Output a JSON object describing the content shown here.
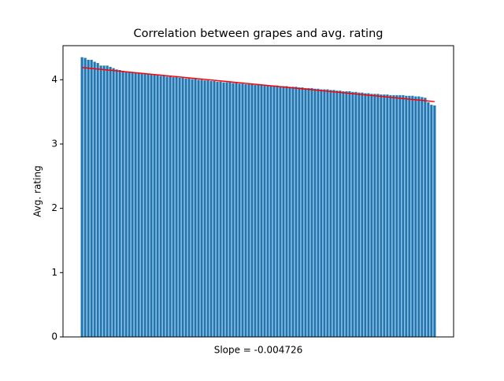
{
  "chart_data": {
    "type": "bar",
    "title": "Correlation between grapes and avg. rating",
    "xlabel": "Slope = -0.004726",
    "ylabel": "Avg. rating",
    "categories": [
      null,
      null,
      null,
      null,
      null,
      null,
      null,
      null,
      null,
      null,
      null,
      null,
      null,
      null,
      null,
      null,
      null,
      null,
      null,
      null,
      null,
      null,
      null,
      null,
      null,
      null,
      null,
      null,
      null,
      null,
      null,
      null,
      null,
      null,
      null,
      null,
      null,
      null,
      null,
      null,
      null,
      null,
      null,
      null,
      null,
      null,
      null,
      null,
      null,
      null,
      null,
      null,
      null,
      null,
      null,
      null,
      null,
      null,
      null,
      null,
      null,
      null,
      null,
      null,
      null,
      null,
      null,
      null,
      null,
      null,
      null,
      null,
      null,
      null,
      null,
      null,
      null,
      null,
      null,
      null,
      null,
      null,
      null,
      null,
      null,
      null,
      null,
      null,
      null,
      null,
      null,
      null,
      null,
      null,
      null,
      null,
      null,
      null,
      null,
      null,
      null,
      null,
      null,
      null,
      null,
      null,
      null,
      null,
      null,
      null,
      null,
      null,
      null
    ],
    "values": [
      4.35,
      4.34,
      4.31,
      4.31,
      4.28,
      4.26,
      4.22,
      4.22,
      4.22,
      4.2,
      4.18,
      4.16,
      4.15,
      4.14,
      4.13,
      4.12,
      4.11,
      4.11,
      4.1,
      4.1,
      4.09,
      4.09,
      4.08,
      4.08,
      4.07,
      4.06,
      4.06,
      4.05,
      4.05,
      4.04,
      4.04,
      4.03,
      4.03,
      4.02,
      4.02,
      4.01,
      4.01,
      4.0,
      4.0,
      3.99,
      3.99,
      3.98,
      3.98,
      3.97,
      3.97,
      3.96,
      3.96,
      3.96,
      3.95,
      3.95,
      3.94,
      3.94,
      3.93,
      3.93,
      3.93,
      3.92,
      3.92,
      3.92,
      3.92,
      3.91,
      3.91,
      3.91,
      3.91,
      3.9,
      3.9,
      3.9,
      3.89,
      3.89,
      3.89,
      3.88,
      3.88,
      3.87,
      3.87,
      3.87,
      3.86,
      3.86,
      3.85,
      3.85,
      3.85,
      3.84,
      3.84,
      3.83,
      3.83,
      3.82,
      3.82,
      3.82,
      3.81,
      3.81,
      3.8,
      3.8,
      3.79,
      3.79,
      3.78,
      3.78,
      3.78,
      3.77,
      3.77,
      3.77,
      3.76,
      3.76,
      3.76,
      3.76,
      3.76,
      3.75,
      3.75,
      3.75,
      3.74,
      3.74,
      3.73,
      3.72,
      3.65,
      3.61,
      3.6
    ],
    "color": "#1f77b4",
    "trend_line": {
      "values": [
        4.19,
        3.66
      ],
      "color": "#ff0000"
    },
    "ylim": [
      0,
      4.53
    ],
    "yticks": [
      0,
      1,
      2,
      3,
      4
    ]
  }
}
